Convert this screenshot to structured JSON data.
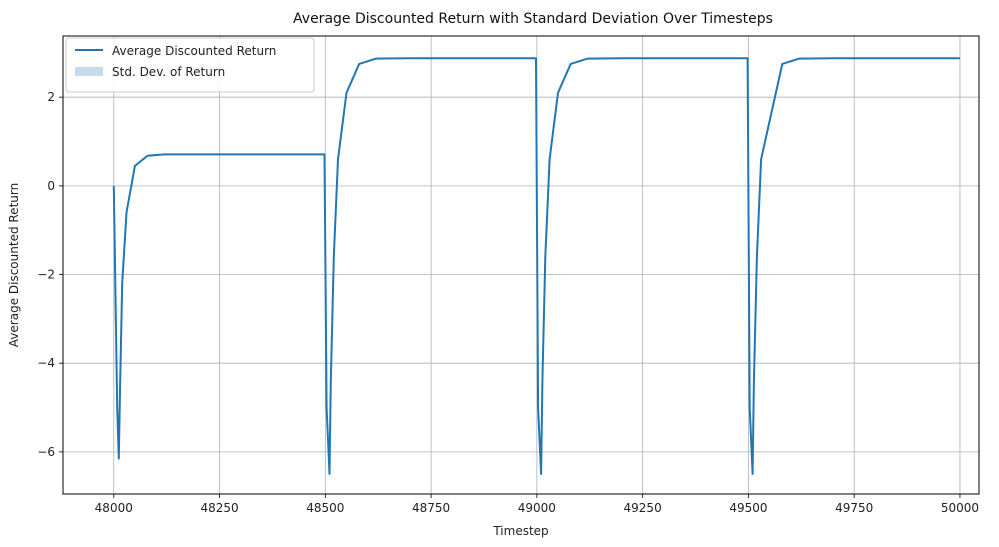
{
  "chart_data": {
    "type": "line",
    "title": "Average Discounted Return with Standard Deviation Over Timesteps",
    "xlabel": "Timestep",
    "ylabel": "Average Discounted Return",
    "xlim": [
      47880,
      50045
    ],
    "ylim": [
      -6.95,
      3.38
    ],
    "xticks": [
      48000,
      48250,
      48500,
      48750,
      49000,
      49250,
      49500,
      49750,
      50000
    ],
    "xtick_labels": [
      "48000",
      "48250",
      "48500",
      "48750",
      "49000",
      "49250",
      "49500",
      "49750",
      "50000"
    ],
    "yticks": [
      2,
      0,
      -2,
      -4,
      -6
    ],
    "ytick_labels": [
      "2",
      "0",
      "−2",
      "−4",
      "−6"
    ],
    "grid": true,
    "legend_position": "top-left",
    "series": [
      {
        "name": "Average Discounted Return",
        "color": "#1f77b4",
        "x": [
          48000,
          48008,
          48012,
          48015,
          48020,
          48030,
          48050,
          48080,
          48120,
          48200,
          48300,
          48400,
          48495,
          48498,
          48503,
          48510,
          48513,
          48520,
          48530,
          48550,
          48580,
          48620,
          48700,
          48800,
          48900,
          48995,
          48998,
          49003,
          49010,
          49013,
          49020,
          49030,
          49050,
          49080,
          49120,
          49200,
          49300,
          49400,
          49495,
          49498,
          49503,
          49510,
          49513,
          49520,
          49530,
          49050,
          49580,
          49620,
          49700,
          49800,
          49900,
          50000
        ],
        "y": [
          0.0,
          -5.0,
          -6.15,
          -4.5,
          -2.2,
          -0.6,
          0.45,
          0.68,
          0.71,
          0.71,
          0.71,
          0.71,
          0.71,
          0.71,
          -5.0,
          -6.5,
          -4.4,
          -1.6,
          0.6,
          2.1,
          2.75,
          2.87,
          2.88,
          2.88,
          2.88,
          2.88,
          2.88,
          -5.0,
          -6.5,
          -4.4,
          -1.6,
          0.6,
          2.1,
          2.75,
          2.87,
          2.88,
          2.88,
          2.88,
          2.88,
          2.88,
          -5.0,
          -6.5,
          -4.4,
          -1.6,
          0.6,
          2.1,
          2.75,
          2.87,
          2.88,
          2.88,
          2.88,
          2.88
        ]
      },
      {
        "name": "Std. Dev. of Return",
        "color": "#c6dcec",
        "kind": "band"
      }
    ]
  }
}
